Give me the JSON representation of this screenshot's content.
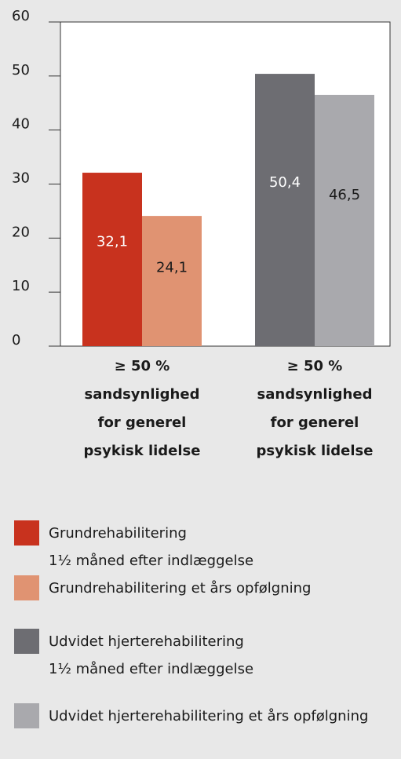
{
  "chart_data": {
    "type": "bar",
    "categories": [
      "≥ 50 %\nsandsynlighed\nfor generel\npsykisk lidelse",
      "≥ 50 %\nsandsynlighed\nfor generel\npsykisk lidelse"
    ],
    "series": [
      {
        "name": "Grundrehabilitering\n1½ måned efter indlæggelse",
        "color": "#c8321e",
        "values": [
          32.1,
          null
        ],
        "value_labels": [
          "32,1",
          null
        ]
      },
      {
        "name": "Grundrehabilitering et års opfølgning",
        "color": "#e09372",
        "values": [
          24.1,
          null
        ],
        "value_labels": [
          "24,1",
          null
        ]
      },
      {
        "name": "Udvidet hjerterehabilitering\n1½ måned efter indlæggelse",
        "color": "#6d6d72",
        "values": [
          null,
          50.4
        ],
        "value_labels": [
          null,
          "50,4"
        ]
      },
      {
        "name": "Udvidet hjerterehabilitering et års opfølgning",
        "color": "#a9a9ad",
        "values": [
          null,
          46.5
        ],
        "value_labels": [
          null,
          "46,5"
        ]
      }
    ],
    "ylim": [
      0,
      60
    ],
    "yticks": [
      0,
      10,
      20,
      30,
      40,
      50,
      60
    ]
  }
}
